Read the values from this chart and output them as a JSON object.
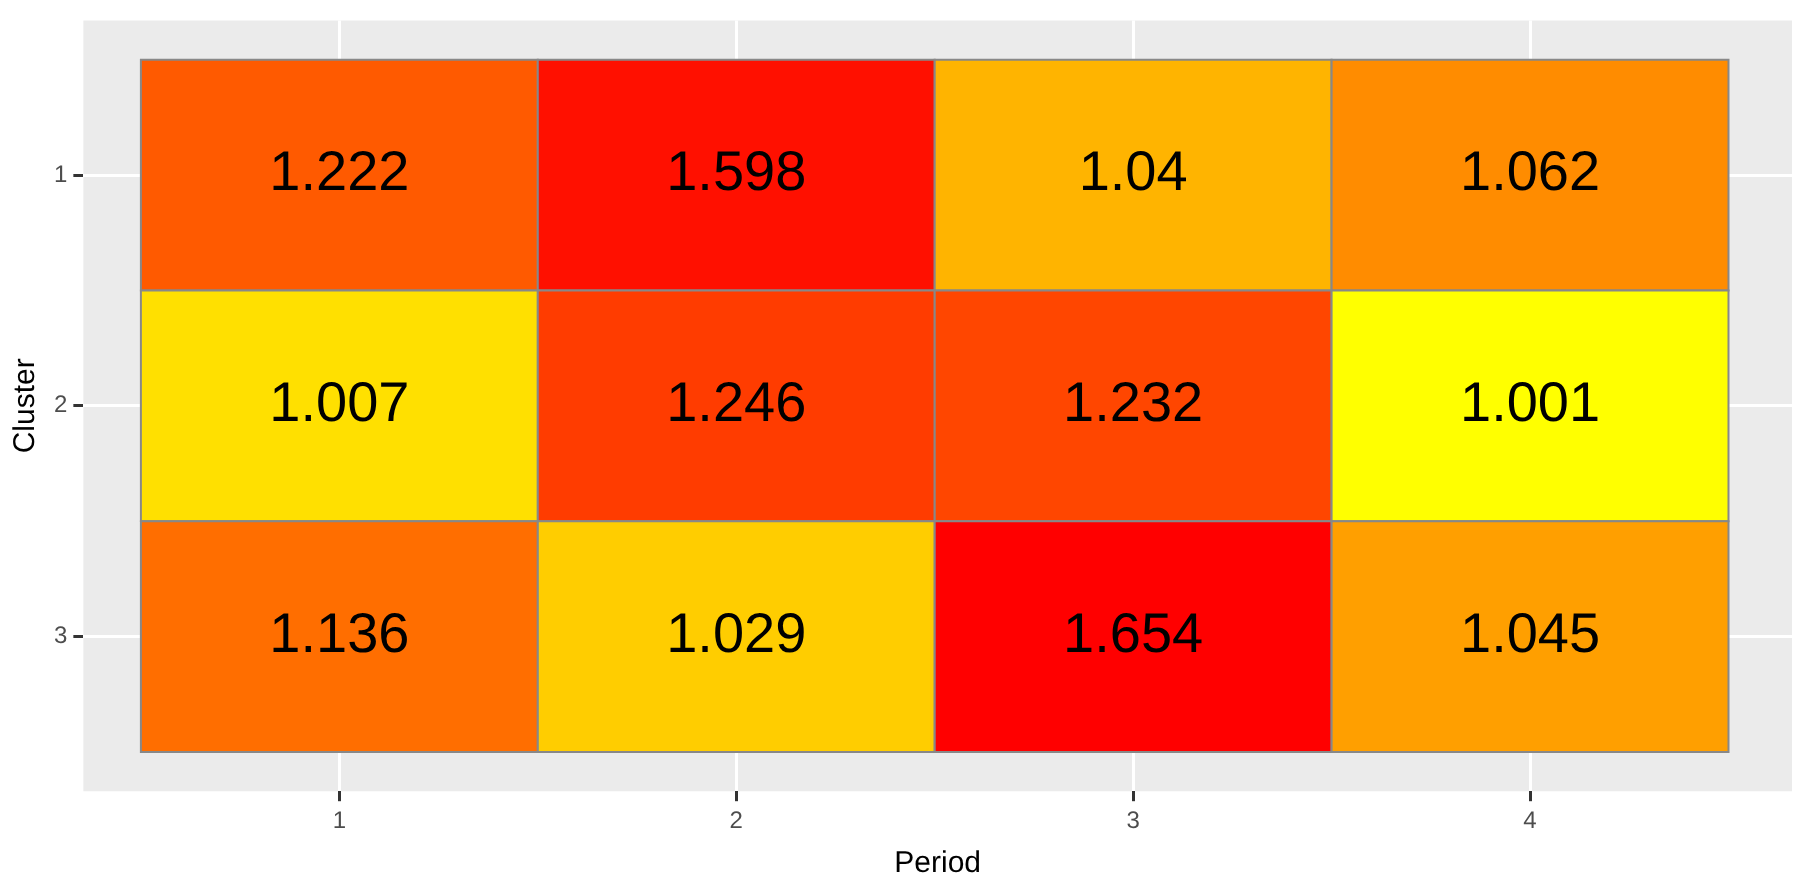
{
  "chart_data": {
    "type": "heatmap",
    "xlabel": "Period",
    "ylabel": "Cluster",
    "categories": [
      "1",
      "2",
      "3",
      "4"
    ],
    "y_categories": [
      "1",
      "2",
      "3"
    ],
    "cells": [
      [
        1.222,
        1.598,
        1.04,
        1.062
      ],
      [
        1.007,
        1.246,
        1.232,
        1.001
      ],
      [
        1.136,
        1.029,
        1.654,
        1.045
      ]
    ],
    "colors": [
      "#ff5a00",
      "#ff1000",
      "#ffb400",
      "#ff8c00",
      "#ffe000",
      "#ff3c00",
      "#ff4600",
      "#ffff00",
      "#ff6e00",
      "#ffcd00",
      "#ff0000",
      "#ff9f00"
    ],
    "data_labels": true,
    "grid": true
  }
}
